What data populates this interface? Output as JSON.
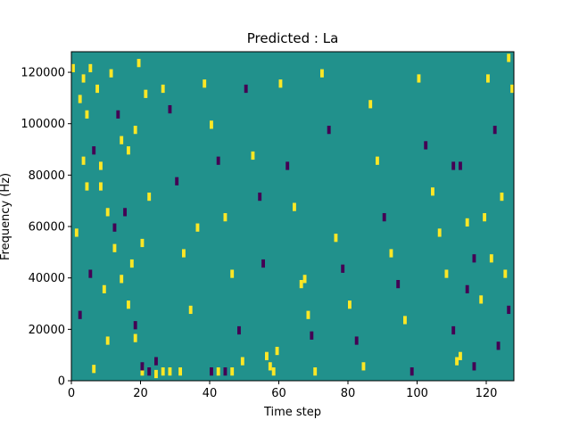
{
  "chart_data": {
    "type": "heatmap",
    "title": "Predicted : La",
    "xlabel": "Time step",
    "ylabel": "Frequency (Hz)",
    "xlim": [
      0,
      128
    ],
    "ylim": [
      0,
      128000
    ],
    "xticks": [
      0,
      20,
      40,
      60,
      80,
      100,
      120
    ],
    "yticks": [
      0,
      20000,
      40000,
      60000,
      80000,
      100000,
      120000
    ],
    "colors": {
      "background": "#21918c",
      "high": "#fde725",
      "low": "#440154"
    },
    "cells": [
      [
        1,
        0,
        120000,
        1
      ],
      [
        1,
        2,
        108000,
        1
      ],
      [
        1,
        4,
        102000,
        1
      ],
      [
        1,
        6,
        88000,
        -1
      ],
      [
        1,
        8,
        74000,
        1
      ],
      [
        1,
        10,
        64000,
        1
      ],
      [
        1,
        12,
        50000,
        1
      ],
      [
        1,
        14,
        38000,
        1
      ],
      [
        1,
        16,
        28000,
        1
      ],
      [
        1,
        18,
        15000,
        1
      ],
      [
        1,
        20,
        3000,
        1
      ],
      [
        1,
        1,
        56000,
        1
      ],
      [
        1,
        3,
        84000,
        1
      ],
      [
        1,
        2,
        24000,
        -1
      ],
      [
        1,
        3,
        116000,
        1
      ],
      [
        1,
        4,
        74000,
        1
      ],
      [
        1,
        5,
        40000,
        -1
      ],
      [
        1,
        6,
        3000,
        1
      ],
      [
        1,
        8,
        82000,
        1
      ],
      [
        1,
        10,
        14000,
        1
      ],
      [
        1,
        12,
        58000,
        -1
      ],
      [
        1,
        15,
        64000,
        -1
      ],
      [
        1,
        5,
        120000,
        1
      ],
      [
        1,
        7,
        112000,
        1
      ],
      [
        1,
        9,
        34000,
        1
      ],
      [
        1,
        11,
        118000,
        1
      ],
      [
        1,
        13,
        102000,
        -1
      ],
      [
        1,
        14,
        92000,
        1
      ],
      [
        1,
        17,
        44000,
        1
      ],
      [
        1,
        18,
        20000,
        -1
      ],
      [
        1,
        20,
        52000,
        1
      ],
      [
        1,
        16,
        88000,
        1
      ],
      [
        1,
        18,
        96000,
        1
      ],
      [
        1,
        19,
        122000,
        1
      ],
      [
        1,
        21,
        110000,
        1
      ],
      [
        1,
        22,
        70000,
        1
      ],
      [
        1,
        24,
        6000,
        -1
      ],
      [
        1,
        26,
        112000,
        1
      ],
      [
        1,
        28,
        104000,
        -1
      ],
      [
        1,
        30,
        76000,
        -1
      ],
      [
        1,
        32,
        48000,
        1
      ],
      [
        1,
        34,
        26000,
        1
      ],
      [
        1,
        36,
        58000,
        1
      ],
      [
        1,
        26,
        2000,
        1
      ],
      [
        1,
        28,
        2000,
        1
      ],
      [
        1,
        31,
        2000,
        1
      ],
      [
        1,
        20,
        2000,
        1
      ],
      [
        1,
        20,
        4000,
        -1
      ],
      [
        1,
        22,
        2000,
        -1
      ],
      [
        1,
        24,
        1000,
        1
      ],
      [
        1,
        38,
        114000,
        1
      ],
      [
        1,
        40,
        98000,
        1
      ],
      [
        1,
        42,
        84000,
        -1
      ],
      [
        1,
        44,
        62000,
        1
      ],
      [
        1,
        46,
        40000,
        1
      ],
      [
        1,
        48,
        18000,
        -1
      ],
      [
        1,
        49,
        6000,
        1
      ],
      [
        1,
        40,
        2000,
        -1
      ],
      [
        1,
        42,
        2000,
        1
      ],
      [
        1,
        44,
        2000,
        -1
      ],
      [
        1,
        46,
        2000,
        1
      ],
      [
        1,
        50,
        112000,
        -1
      ],
      [
        1,
        52,
        86000,
        1
      ],
      [
        1,
        54,
        70000,
        -1
      ],
      [
        1,
        55,
        44000,
        -1
      ],
      [
        1,
        56,
        8000,
        1
      ],
      [
        1,
        57,
        4000,
        1
      ],
      [
        1,
        58,
        2000,
        1
      ],
      [
        1,
        59,
        10000,
        1
      ],
      [
        1,
        60,
        114000,
        1
      ],
      [
        1,
        62,
        82000,
        -1
      ],
      [
        1,
        64,
        66000,
        1
      ],
      [
        1,
        66,
        36000,
        1
      ],
      [
        1,
        67,
        38000,
        1
      ],
      [
        1,
        68,
        24000,
        1
      ],
      [
        1,
        69,
        16000,
        -1
      ],
      [
        1,
        70,
        2000,
        1
      ],
      [
        1,
        72,
        118000,
        1
      ],
      [
        1,
        74,
        96000,
        -1
      ],
      [
        1,
        76,
        54000,
        1
      ],
      [
        1,
        78,
        42000,
        -1
      ],
      [
        1,
        80,
        28000,
        1
      ],
      [
        1,
        82,
        14000,
        -1
      ],
      [
        1,
        84,
        4000,
        1
      ],
      [
        1,
        86,
        106000,
        1
      ],
      [
        1,
        88,
        84000,
        1
      ],
      [
        1,
        90,
        62000,
        -1
      ],
      [
        1,
        92,
        48000,
        1
      ],
      [
        1,
        94,
        36000,
        -1
      ],
      [
        1,
        96,
        22000,
        1
      ],
      [
        1,
        98,
        2000,
        -1
      ],
      [
        1,
        100,
        116000,
        1
      ],
      [
        1,
        102,
        90000,
        -1
      ],
      [
        1,
        104,
        72000,
        1
      ],
      [
        1,
        106,
        56000,
        1
      ],
      [
        1,
        108,
        40000,
        1
      ],
      [
        1,
        110,
        18000,
        -1
      ],
      [
        1,
        111,
        6000,
        1
      ],
      [
        1,
        112,
        82000,
        -1
      ],
      [
        1,
        114,
        60000,
        1
      ],
      [
        1,
        116,
        46000,
        -1
      ],
      [
        1,
        118,
        30000,
        1
      ],
      [
        1,
        120,
        116000,
        1
      ],
      [
        1,
        122,
        96000,
        -1
      ],
      [
        1,
        124,
        70000,
        1
      ],
      [
        1,
        126,
        26000,
        -1
      ],
      [
        1,
        127,
        112000,
        1
      ],
      [
        1,
        110,
        82000,
        -1
      ],
      [
        1,
        112,
        8000,
        1
      ],
      [
        1,
        114,
        34000,
        -1
      ],
      [
        1,
        116,
        4000,
        -1
      ],
      [
        1,
        119,
        62000,
        1
      ],
      [
        1,
        121,
        46000,
        1
      ],
      [
        1,
        123,
        12000,
        -1
      ],
      [
        1,
        125,
        40000,
        1
      ],
      [
        1,
        126,
        124000,
        1
      ]
    ]
  }
}
